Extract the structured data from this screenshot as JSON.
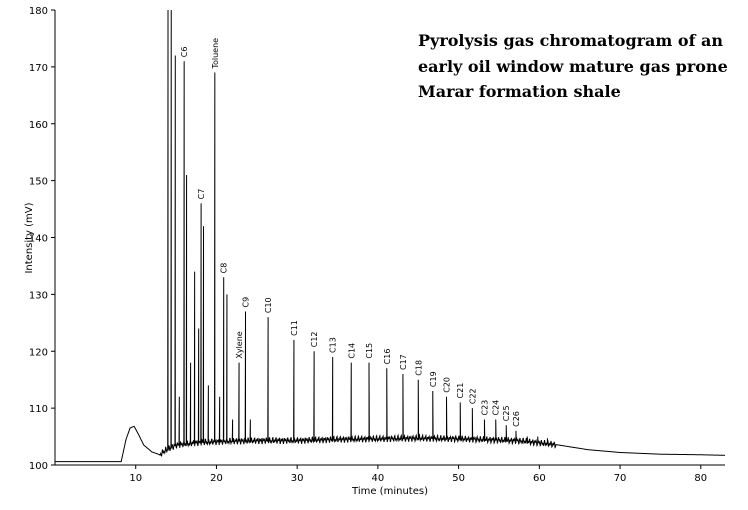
{
  "chart_data": {
    "type": "line",
    "title_lines": [
      "Pyrolysis gas chromatogram of an",
      "early oil window mature gas prone",
      "Marar formation shale"
    ],
    "xlabel": "Time (minutes)",
    "ylabel": "Intensity (mV)",
    "xlim": [
      0,
      83
    ],
    "ylim": [
      100,
      180
    ],
    "x_ticks": [
      10,
      20,
      30,
      40,
      50,
      60,
      70,
      80
    ],
    "y_ticks": [
      100,
      110,
      120,
      130,
      140,
      150,
      160,
      170,
      180
    ],
    "baseline_points": [
      [
        0,
        100.6
      ],
      [
        8.2,
        100.6
      ],
      [
        8.8,
        104.5
      ],
      [
        9.3,
        106.5
      ],
      [
        9.8,
        106.8
      ],
      [
        10.3,
        105.5
      ],
      [
        11,
        103.5
      ],
      [
        12,
        102.3
      ],
      [
        13,
        101.8
      ],
      [
        13.6,
        102.5
      ],
      [
        15,
        103.5
      ],
      [
        18,
        104
      ],
      [
        22,
        104.2
      ],
      [
        26,
        104.3
      ],
      [
        30,
        104.3
      ],
      [
        35,
        104.5
      ],
      [
        40,
        104.6
      ],
      [
        45,
        104.7
      ],
      [
        50,
        104.6
      ],
      [
        55,
        104.4
      ],
      [
        58,
        104.2
      ],
      [
        62,
        103.6
      ],
      [
        66,
        102.7
      ],
      [
        70,
        102.2
      ],
      [
        75,
        101.9
      ],
      [
        80,
        101.8
      ],
      [
        83,
        101.7
      ]
    ],
    "peaks": [
      {
        "x": 14.0,
        "y": 180
      },
      {
        "x": 14.4,
        "y": 180
      },
      {
        "x": 14.9,
        "y": 172
      },
      {
        "x": 15.4,
        "y": 112
      },
      {
        "x": 16.0,
        "y": 171,
        "label": "C6"
      },
      {
        "x": 16.3,
        "y": 151
      },
      {
        "x": 16.8,
        "y": 118
      },
      {
        "x": 17.3,
        "y": 134
      },
      {
        "x": 17.8,
        "y": 124
      },
      {
        "x": 18.1,
        "y": 146,
        "label": "C7"
      },
      {
        "x": 18.4,
        "y": 142
      },
      {
        "x": 19.0,
        "y": 114
      },
      {
        "x": 19.8,
        "y": 169,
        "label": "Toluene"
      },
      {
        "x": 20.4,
        "y": 112
      },
      {
        "x": 20.9,
        "y": 133,
        "label": "C8"
      },
      {
        "x": 21.3,
        "y": 130
      },
      {
        "x": 22.0,
        "y": 108
      },
      {
        "x": 22.8,
        "y": 118,
        "label": "Xylene"
      },
      {
        "x": 23.6,
        "y": 127,
        "label": "C9"
      },
      {
        "x": 24.2,
        "y": 108
      },
      {
        "x": 26.4,
        "y": 126,
        "label": "C10"
      },
      {
        "x": 29.6,
        "y": 122,
        "label": "C11"
      },
      {
        "x": 32.1,
        "y": 120,
        "label": "C12"
      },
      {
        "x": 34.4,
        "y": 119,
        "label": "C13"
      },
      {
        "x": 36.7,
        "y": 118,
        "label": "C14"
      },
      {
        "x": 38.9,
        "y": 118,
        "label": "C15"
      },
      {
        "x": 41.1,
        "y": 117,
        "label": "C16"
      },
      {
        "x": 43.1,
        "y": 116,
        "label": "C17"
      },
      {
        "x": 45.0,
        "y": 115,
        "label": "C18"
      },
      {
        "x": 46.8,
        "y": 113,
        "label": "C19"
      },
      {
        "x": 48.5,
        "y": 112,
        "label": "C20"
      },
      {
        "x": 50.2,
        "y": 111,
        "label": "C21"
      },
      {
        "x": 51.7,
        "y": 110,
        "label": "C22"
      },
      {
        "x": 53.2,
        "y": 108,
        "label": "C23"
      },
      {
        "x": 54.6,
        "y": 108,
        "label": "C24"
      },
      {
        "x": 55.9,
        "y": 107,
        "label": "C25"
      },
      {
        "x": 57.1,
        "y": 106,
        "label": "C26"
      },
      {
        "x": 58.5,
        "y": 105
      },
      {
        "x": 59.8,
        "y": 105
      },
      {
        "x": 61.0,
        "y": 104.7
      }
    ],
    "grid": false,
    "line_color": "#000000"
  }
}
